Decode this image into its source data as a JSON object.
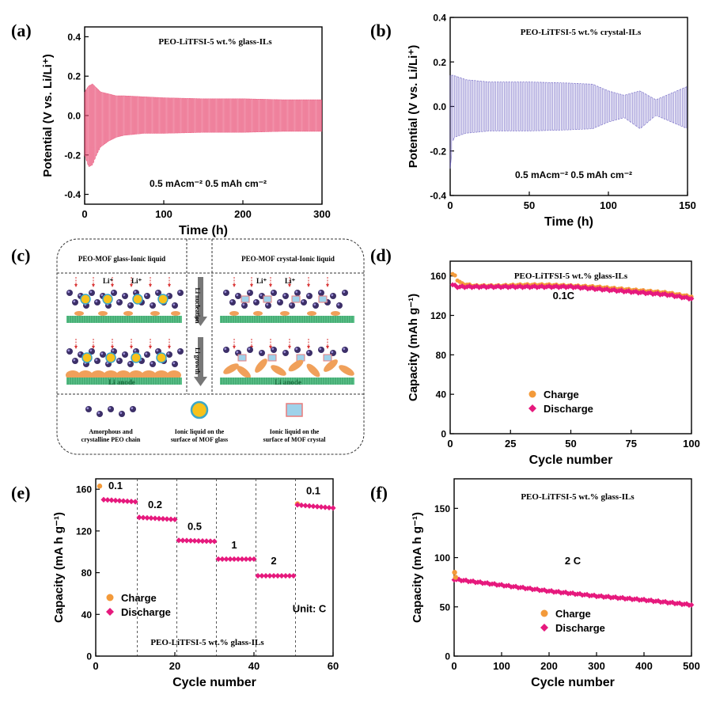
{
  "colors": {
    "pink": "#e8456f",
    "light_pink": "#f06b8c",
    "purple": "#6a5fc2",
    "orange": "#f39a3a",
    "magenta": "#e6197d",
    "green": "#2fa870",
    "navy": "#3c2f68",
    "yellow": "#f7c21c",
    "anode_text": "#1b6e3f"
  },
  "chart_data": [
    {
      "panel": "(a)",
      "type": "line",
      "title": "PEO-LiTFSI-5 wt.% glass-ILs",
      "xlabel": "Time (h)",
      "ylabel": "Potential (V vs. Li/Li⁺)",
      "xlim": [
        0,
        300
      ],
      "ylim": [
        -0.45,
        0.45
      ],
      "xticks": [
        0,
        100,
        200,
        300
      ],
      "yticks": [
        -0.4,
        -0.2,
        0.0,
        0.2,
        0.4
      ],
      "ytick_labels": [
        "-0.4",
        "-0.2",
        "0.0",
        "0.2",
        "0.4"
      ],
      "annotation": "0.5 mAcm⁻²  0.5 mAh cm⁻²",
      "series": [
        {
          "name": "voltage envelope",
          "x": [
            0,
            5,
            10,
            15,
            20,
            30,
            40,
            50,
            75,
            100,
            150,
            200,
            250,
            300
          ],
          "upper": [
            0.12,
            0.15,
            0.16,
            0.14,
            0.12,
            0.11,
            0.1,
            0.1,
            0.095,
            0.09,
            0.085,
            0.085,
            0.08,
            0.08
          ],
          "lower": [
            -0.2,
            -0.26,
            -0.25,
            -0.2,
            -0.16,
            -0.13,
            -0.11,
            -0.1,
            -0.09,
            -0.09,
            -0.085,
            -0.085,
            -0.08,
            -0.08
          ]
        }
      ]
    },
    {
      "panel": "(b)",
      "type": "line",
      "title": "PEO-LiTFSI-5 wt.% crystal-ILs",
      "xlabel": "Time (h)",
      "ylabel": "Potential (V vs. Li/Li⁺)",
      "xlim": [
        0,
        150
      ],
      "ylim": [
        -0.4,
        0.4
      ],
      "xticks": [
        0,
        50,
        100,
        150
      ],
      "yticks": [
        -0.4,
        -0.2,
        0.0,
        0.2,
        0.4
      ],
      "ytick_labels": [
        "-0.4",
        "-0.2",
        "0.0",
        "0.2",
        "0.4"
      ],
      "annotation": "0.5 mAcm⁻²  0.5 mAh cm⁻²",
      "series": [
        {
          "name": "voltage envelope",
          "x": [
            0,
            2,
            10,
            25,
            50,
            75,
            90,
            100,
            110,
            120,
            130,
            140,
            150
          ],
          "upper": [
            0.14,
            0.14,
            0.12,
            0.11,
            0.11,
            0.105,
            0.1,
            0.07,
            0.05,
            0.07,
            0.03,
            0.06,
            0.09
          ],
          "lower": [
            -0.28,
            -0.14,
            -0.12,
            -0.11,
            -0.11,
            -0.105,
            -0.1,
            -0.07,
            -0.05,
            -0.1,
            -0.04,
            -0.07,
            -0.1
          ]
        }
      ]
    },
    {
      "panel": "(d)",
      "type": "scatter",
      "title": "PEO-LiTFSI-5 wt.% glass-ILs",
      "xlabel": "Cycle number",
      "ylabel": "Capacity (mAh g⁻¹)",
      "xlim": [
        0,
        100
      ],
      "ylim": [
        0,
        175
      ],
      "xticks": [
        0,
        25,
        50,
        75,
        100
      ],
      "yticks": [
        0,
        40,
        80,
        120,
        160
      ],
      "annotation": "0.1C",
      "legend": [
        "Charge",
        "Discharge"
      ],
      "series": [
        {
          "name": "Charge",
          "x": [
            1,
            2,
            3,
            5,
            10,
            20,
            30,
            40,
            50,
            60,
            70,
            80,
            90,
            100
          ],
          "values": [
            162,
            160,
            156,
            152,
            150,
            150,
            151,
            151,
            150,
            149,
            147,
            145,
            143,
            139
          ]
        },
        {
          "name": "Discharge",
          "x": [
            1,
            2,
            3,
            5,
            10,
            20,
            30,
            40,
            50,
            60,
            70,
            80,
            90,
            100
          ],
          "values": [
            151,
            150,
            149,
            149,
            149,
            149,
            149,
            149,
            149,
            147,
            145,
            143,
            141,
            137
          ]
        }
      ]
    },
    {
      "panel": "(e)",
      "type": "scatter",
      "title": "PEO-LiTFSI-5 wt.% glass-ILs",
      "xlabel": "Cycle number",
      "ylabel": "Capacity (mA h g⁻¹)",
      "xlim": [
        0,
        60
      ],
      "ylim": [
        0,
        170
      ],
      "xticks": [
        0,
        20,
        40,
        60
      ],
      "yticks": [
        0,
        40,
        80,
        120,
        160
      ],
      "rate_labels": [
        "0.1",
        "0.2",
        "0.5",
        "1",
        "2",
        "0.1"
      ],
      "unit_label": "Unit: C",
      "legend": [
        "Charge",
        "Discharge"
      ],
      "series": [
        {
          "name": "Charge",
          "x": [
            1,
            51
          ],
          "values": [
            163,
            146
          ]
        },
        {
          "name": "Discharge",
          "segments": [
            {
              "from": 2,
              "to": 10,
              "start": 150,
              "end": 148
            },
            {
              "from": 11,
              "to": 20,
              "start": 133,
              "end": 131
            },
            {
              "from": 21,
              "to": 30,
              "start": 111,
              "end": 110
            },
            {
              "from": 31,
              "to": 40,
              "start": 93,
              "end": 93
            },
            {
              "from": 41,
              "to": 50,
              "start": 77,
              "end": 77
            },
            {
              "from": 51,
              "to": 60,
              "start": 145,
              "end": 142
            }
          ]
        }
      ]
    },
    {
      "panel": "(f)",
      "type": "scatter",
      "title": "PEO-LiTFSI-5 wt.% glass-ILs",
      "xlabel": "Cycle number",
      "ylabel": "Capacity (mA h g⁻¹)",
      "xlim": [
        0,
        500
      ],
      "ylim": [
        0,
        180
      ],
      "xticks": [
        0,
        100,
        200,
        300,
        400,
        500
      ],
      "yticks": [
        0,
        50,
        100,
        150
      ],
      "annotation": "2 C",
      "legend": [
        "Charge",
        "Discharge"
      ],
      "series": [
        {
          "name": "Charge",
          "x": [
            1,
            3
          ],
          "values": [
            85,
            80
          ]
        },
        {
          "name": "Discharge",
          "x": [
            0,
            100,
            200,
            300,
            400,
            500
          ],
          "values": [
            78,
            72,
            66,
            61,
            57,
            52
          ]
        }
      ]
    }
  ],
  "schematic": {
    "panel": "(c)",
    "left_title": "PEO-MOF glass-Ionic liquid",
    "right_title": "PEO-MOF crystal-Ionic liquid",
    "li_ion": "Li⁺",
    "nucleation": "Li nucleation",
    "growth": "Li growth",
    "anode": "Li anode",
    "legend": [
      {
        "line1": "Amorphous and",
        "line2": "crystalline PEO chain"
      },
      {
        "line1": "Ionic liquid on the",
        "line2": "surface of  MOF glass"
      },
      {
        "line1": "Ionic liquid on the",
        "line2": "surface of  MOF crystal"
      }
    ]
  }
}
